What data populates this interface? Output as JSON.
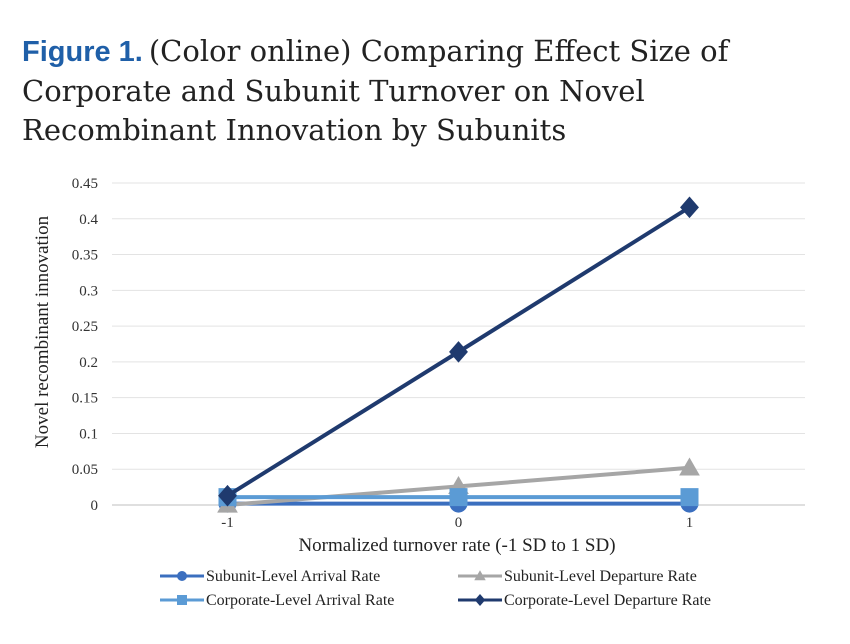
{
  "figure": {
    "label": "Figure 1.",
    "caption": "(Color online) Comparing Effect Size of Corporate and Subunit Turnover on Novel Recombinant Innovation by Subunits"
  },
  "chart_data": {
    "type": "line",
    "xlabel": "Normalized turnover rate (-1 SD to 1 SD)",
    "ylabel": "Novel recombinant innovation",
    "x": [
      -1,
      0,
      1
    ],
    "x_tick_labels": [
      "-1",
      "0",
      "1"
    ],
    "y_ticks": [
      "0",
      "0.05",
      "0.1",
      "0.15",
      "0.2",
      "0.25",
      "0.3",
      "0.35",
      "0.4",
      "0.45"
    ],
    "ylim": [
      0,
      0.45
    ],
    "grid": "horizontal",
    "legend_position": "bottom",
    "series": [
      {
        "name": "Subunit-Level Arrival Rate",
        "values": [
          0.002,
          0.002,
          0.002
        ],
        "color": "#3b6fbf",
        "marker": "circle"
      },
      {
        "name": "Subunit-Level Departure Rate",
        "values": [
          0.0,
          0.026,
          0.052
        ],
        "color": "#a6a6a6",
        "marker": "triangle"
      },
      {
        "name": "Corporate-Level Arrival Rate",
        "values": [
          0.011,
          0.011,
          0.011
        ],
        "color": "#5b9bd5",
        "marker": "square"
      },
      {
        "name": "Corporate-Level Departure Rate",
        "values": [
          0.013,
          0.214,
          0.416
        ],
        "color": "#1f3a6e",
        "marker": "diamond"
      }
    ]
  }
}
